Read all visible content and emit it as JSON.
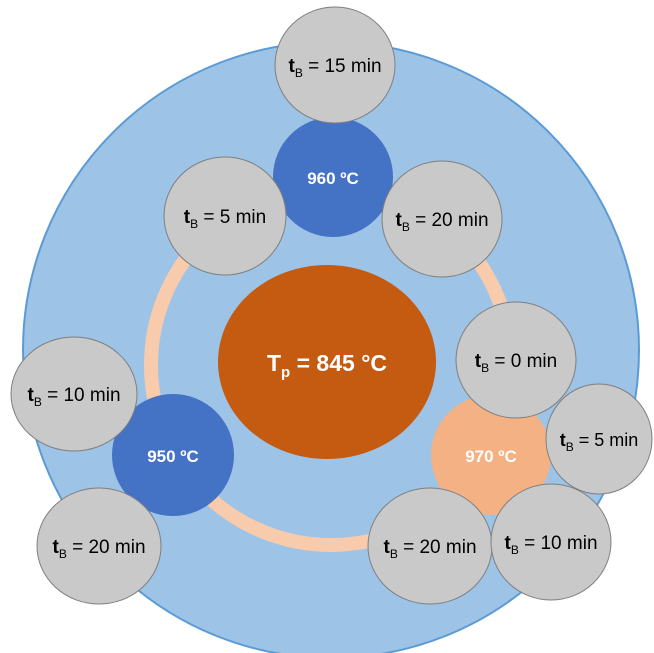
{
  "center": {
    "symbol": "T",
    "subscript": "p",
    "equals_text": " = 845 °C"
  },
  "temperatures": [
    {
      "text": "960 ºC",
      "color": "#4472c4",
      "times": [
        {
          "symbol": "t",
          "subscript": "B",
          "value": " = 15 min"
        },
        {
          "symbol": "t",
          "subscript": "B",
          "value": " = 5 min"
        },
        {
          "symbol": "t",
          "subscript": "B",
          "value": " = 20 min"
        }
      ]
    },
    {
      "text": "950 ºC",
      "color": "#4472c4",
      "times": [
        {
          "symbol": "t",
          "subscript": "B",
          "value": " = 10 min"
        },
        {
          "symbol": "t",
          "subscript": "B",
          "value": " = 20 min"
        }
      ]
    },
    {
      "text": "970 ºC",
      "color": "#f4b183",
      "times": [
        {
          "symbol": "t",
          "subscript": "B",
          "value": " = 0 min"
        },
        {
          "symbol": "t",
          "subscript": "B",
          "value": " = 5 min"
        },
        {
          "symbol": "t",
          "subscript": "B",
          "value": " = 10 min"
        },
        {
          "symbol": "t",
          "subscript": "B",
          "value": " = 20 min"
        }
      ]
    }
  ],
  "colors": {
    "outer_disc": "#9dc3e6",
    "outer_stroke": "#5b9bd5",
    "ring": "#f8cbad",
    "center_fill": "#c55a11",
    "time_bubble": "#c9c9c9",
    "time_stroke": "#7f7f7f"
  }
}
